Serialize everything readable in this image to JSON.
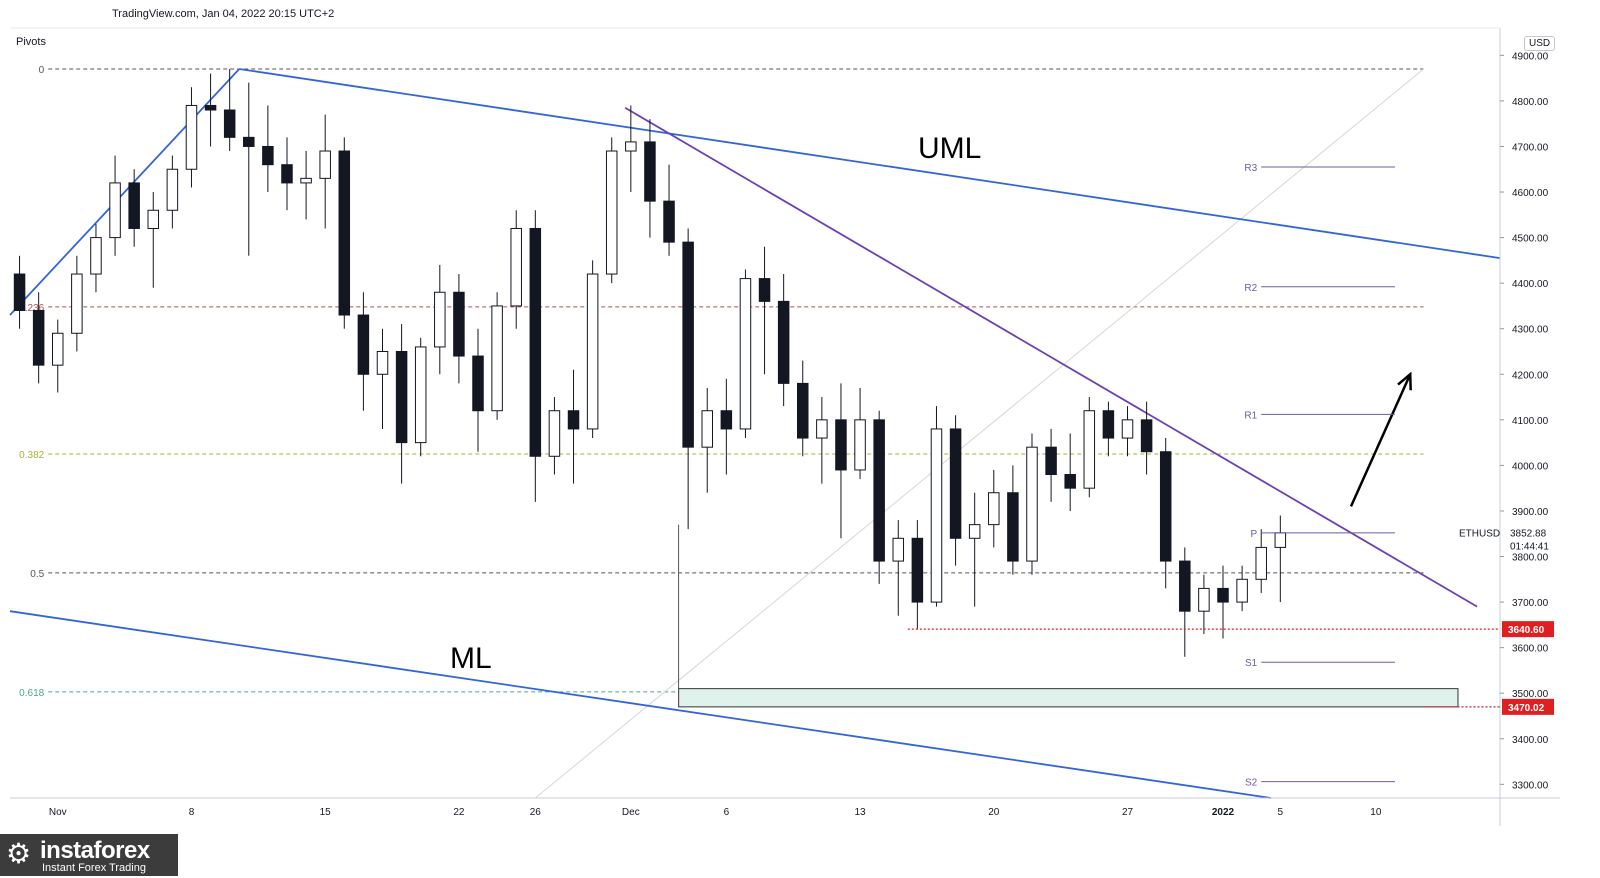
{
  "header": {
    "source": "TradingView.com, Jan 04, 2022 20:15 UTC+2",
    "indicator": "Pivots",
    "currency": "USD"
  },
  "colors": {
    "channel": "#3265d8",
    "trendline": "#6c3fb5",
    "candle": "#131722",
    "fib_0": "#555555",
    "fib_0236": "#b05050",
    "fib_0382": "#a5b33a",
    "fib_05": "#555555",
    "fib_0618": "#4aa88a",
    "pivot": "#6c5aa8",
    "support": "#e02020",
    "zone_fill": "#e1f2ec"
  },
  "annotations": {
    "uml": "UML",
    "ml": "ML"
  },
  "watermark": {
    "logo_icon": "gear-logo-icon",
    "name": "instaforex",
    "tagline": "Instant Forex Trading"
  },
  "chart_data": {
    "type": "candlestick",
    "symbol": "ETHUSD",
    "last_price": "3852.88",
    "countdown": "01:44:41",
    "ylim": [
      3270,
      4960
    ],
    "yticks": [
      3300,
      3400,
      3500,
      3600,
      3700,
      3800,
      3900,
      4000,
      4100,
      4200,
      4300,
      4400,
      4500,
      4600,
      4700,
      4800,
      4900
    ],
    "ytick_labels": [
      "3300.00",
      "3400.00",
      "3500.00",
      "3600.00",
      "3700.00",
      "3800.00",
      "3900.00",
      "4000.00",
      "4100.00",
      "4200.00",
      "4300.00",
      "4400.00",
      "4500.00",
      "4600.00",
      "4700.00",
      "4800.00",
      "4900.00"
    ],
    "xticks": [
      {
        "label": "Nov",
        "x": 0
      },
      {
        "label": "8",
        "x": 7
      },
      {
        "label": "15",
        "x": 14
      },
      {
        "label": "22",
        "x": 21
      },
      {
        "label": "26",
        "x": 25
      },
      {
        "label": "Dec",
        "x": 30
      },
      {
        "label": "6",
        "x": 35
      },
      {
        "label": "13",
        "x": 42
      },
      {
        "label": "20",
        "x": 49
      },
      {
        "label": "27",
        "x": 56
      },
      {
        "label": "2022",
        "x": 61
      },
      {
        "label": "5",
        "x": 64
      },
      {
        "label": "10",
        "x": 69
      }
    ],
    "xlim": [
      -2.5,
      75.5
    ],
    "fib_levels": [
      {
        "label": "0",
        "value": 4870,
        "x_start": -0.5,
        "x_end": 71.5,
        "color": "#555555"
      },
      {
        "label": "0.236",
        "value": 4348,
        "x_start": -0.5,
        "x_end": 71.5,
        "color": "#b05050"
      },
      {
        "label": "0.382",
        "value": 4025,
        "x_start": -0.5,
        "x_end": 71.5,
        "color": "#a5b33a"
      },
      {
        "label": "0.5",
        "value": 3764,
        "x_start": -0.5,
        "x_end": 71.5,
        "color": "#555555"
      },
      {
        "label": "0.618",
        "value": 3503,
        "x_start": -0.5,
        "x_end": 35.5,
        "color": "#4aa88a"
      }
    ],
    "pivots": [
      {
        "label": "R3",
        "value": 4655
      },
      {
        "label": "R2",
        "value": 4392
      },
      {
        "label": "R1",
        "value": 4112
      },
      {
        "label": "P",
        "value": 3852
      },
      {
        "label": "S1",
        "value": 3568
      },
      {
        "label": "S2",
        "value": 3306
      }
    ],
    "pivot_x": [
      63,
      70
    ],
    "support_levels": [
      {
        "value": 3640.6,
        "label": "3640.60",
        "x_start": 44.5
      },
      {
        "value": 3470.02,
        "label": "3470.02",
        "x_start": 71.6
      }
    ],
    "zone": {
      "x_start": 32.5,
      "x_end": 73.3,
      "y_low": 3470,
      "y_high": 3510
    },
    "lines": [
      {
        "name": "uptrend",
        "points": [
          [
            -2.5,
            4330
          ],
          [
            9.5,
            4870
          ]
        ],
        "color": "#3265d8"
      },
      {
        "name": "UML",
        "points": [
          [
            9.5,
            4870
          ],
          [
            75.5,
            4455
          ]
        ],
        "color": "#3265d8"
      },
      {
        "name": "ML",
        "points": [
          [
            -2.5,
            3680
          ],
          [
            63.5,
            3270
          ]
        ],
        "color": "#3265d8"
      },
      {
        "name": "descending-trendline",
        "points": [
          [
            29.7,
            4785
          ],
          [
            74.3,
            3690
          ]
        ],
        "color": "#6c3fb5"
      },
      {
        "name": "vertical-dec",
        "points": [
          [
            32.5,
            3870
          ],
          [
            32.5,
            3470
          ]
        ],
        "color": "#555555"
      }
    ],
    "arrow": {
      "from": [
        67.7,
        3910
      ],
      "to": [
        70.8,
        4200
      ]
    },
    "ohlc": [
      [
        -2,
        4420,
        4460,
        4300,
        4340
      ],
      [
        -1,
        4340,
        4380,
        4180,
        4220
      ],
      [
        0,
        4220,
        4320,
        4160,
        4290
      ],
      [
        1,
        4290,
        4460,
        4250,
        4420
      ],
      [
        2,
        4420,
        4530,
        4380,
        4500
      ],
      [
        3,
        4500,
        4680,
        4460,
        4620
      ],
      [
        4,
        4620,
        4650,
        4480,
        4520
      ],
      [
        5,
        4520,
        4600,
        4390,
        4560
      ],
      [
        6,
        4560,
        4680,
        4520,
        4650
      ],
      [
        7,
        4650,
        4830,
        4610,
        4790
      ],
      [
        8,
        4790,
        4860,
        4700,
        4780
      ],
      [
        9,
        4780,
        4870,
        4690,
        4720
      ],
      [
        10,
        4720,
        4840,
        4460,
        4700
      ],
      [
        11,
        4700,
        4790,
        4600,
        4660
      ],
      [
        12,
        4660,
        4720,
        4560,
        4620
      ],
      [
        13,
        4620,
        4690,
        4540,
        4630
      ],
      [
        14,
        4630,
        4770,
        4520,
        4690
      ],
      [
        15,
        4690,
        4720,
        4300,
        4330
      ],
      [
        16,
        4330,
        4380,
        4120,
        4200
      ],
      [
        17,
        4200,
        4300,
        4080,
        4250
      ],
      [
        18,
        4250,
        4310,
        3960,
        4050
      ],
      [
        19,
        4050,
        4280,
        4020,
        4260
      ],
      [
        20,
        4260,
        4440,
        4200,
        4380
      ],
      [
        21,
        4380,
        4420,
        4180,
        4240
      ],
      [
        22,
        4240,
        4300,
        4030,
        4120
      ],
      [
        23,
        4120,
        4380,
        4100,
        4350
      ],
      [
        24,
        4350,
        4560,
        4300,
        4520
      ],
      [
        25,
        4520,
        4560,
        3920,
        4020
      ],
      [
        26,
        4020,
        4150,
        3980,
        4120
      ],
      [
        27,
        4120,
        4210,
        3960,
        4080
      ],
      [
        28,
        4080,
        4450,
        4060,
        4420
      ],
      [
        29,
        4420,
        4720,
        4400,
        4690
      ],
      [
        30,
        4690,
        4790,
        4600,
        4710
      ],
      [
        31,
        4710,
        4760,
        4500,
        4580
      ],
      [
        32,
        4580,
        4660,
        4460,
        4490
      ],
      [
        33,
        4490,
        4520,
        3860,
        4040
      ],
      [
        34,
        4040,
        4170,
        3940,
        4120
      ],
      [
        35,
        4120,
        4190,
        3980,
        4080
      ],
      [
        36,
        4080,
        4430,
        4060,
        4410
      ],
      [
        37,
        4410,
        4480,
        4200,
        4360
      ],
      [
        38,
        4360,
        4420,
        4130,
        4180
      ],
      [
        39,
        4180,
        4230,
        4020,
        4060
      ],
      [
        40,
        4060,
        4150,
        3960,
        4100
      ],
      [
        41,
        4100,
        4180,
        3840,
        3990
      ],
      [
        42,
        3990,
        4170,
        3970,
        4100
      ],
      [
        43,
        4100,
        4120,
        3740,
        3790
      ],
      [
        44,
        3790,
        3880,
        3670,
        3840
      ],
      [
        45,
        3840,
        3880,
        3640,
        3700
      ],
      [
        46,
        3700,
        4130,
        3690,
        4080
      ],
      [
        47,
        4080,
        4110,
        3780,
        3840
      ],
      [
        48,
        3840,
        3940,
        3690,
        3870
      ],
      [
        49,
        3870,
        3990,
        3820,
        3940
      ],
      [
        50,
        3940,
        4000,
        3760,
        3790
      ],
      [
        51,
        3790,
        4070,
        3760,
        4040
      ],
      [
        52,
        4040,
        4080,
        3920,
        3980
      ],
      [
        53,
        3980,
        4070,
        3900,
        3950
      ],
      [
        54,
        3950,
        4150,
        3930,
        4120
      ],
      [
        55,
        4120,
        4140,
        4020,
        4060
      ],
      [
        56,
        4060,
        4130,
        4020,
        4100
      ],
      [
        57,
        4100,
        4140,
        3980,
        4030
      ],
      [
        58,
        4030,
        4060,
        3730,
        3790
      ],
      [
        59,
        3790,
        3820,
        3580,
        3680
      ],
      [
        60,
        3680,
        3760,
        3630,
        3730
      ],
      [
        61,
        3730,
        3780,
        3620,
        3700
      ],
      [
        62,
        3700,
        3780,
        3680,
        3750
      ],
      [
        63,
        3750,
        3860,
        3720,
        3820
      ],
      [
        64,
        3820,
        3890,
        3700,
        3852
      ]
    ]
  }
}
